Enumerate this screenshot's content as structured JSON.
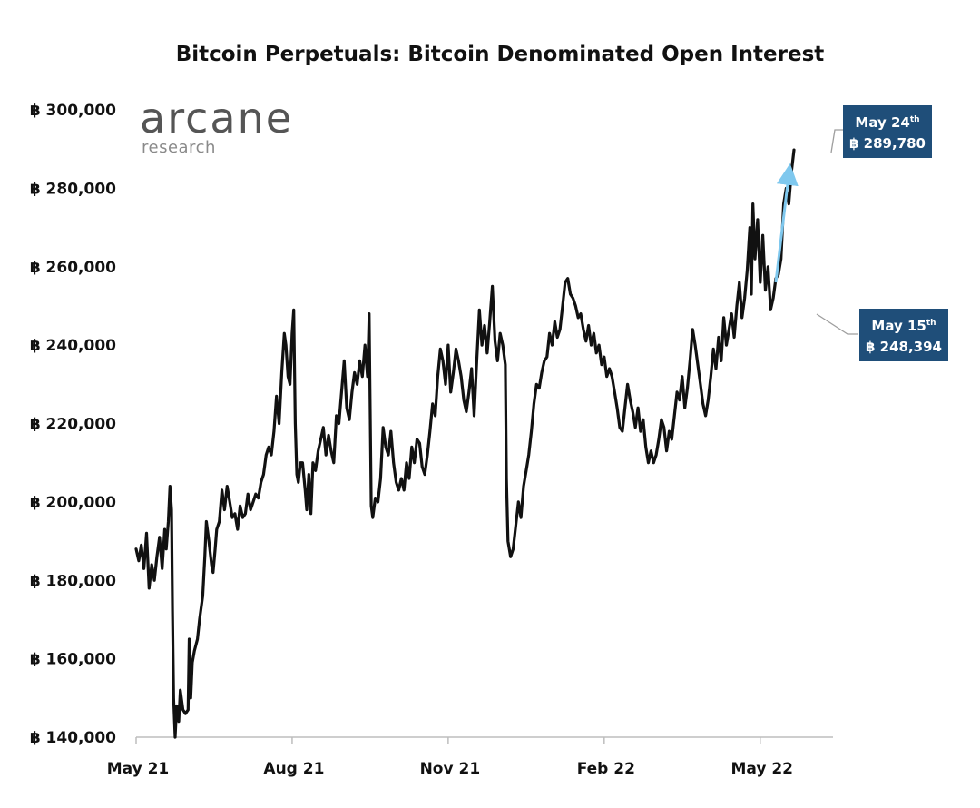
{
  "chart_data": {
    "type": "line",
    "title": "Bitcoin Perpetuals: Bitcoin Denominated Open Interest",
    "xlabel": "",
    "ylabel": "",
    "ylim": [
      140000,
      300000
    ],
    "y_ticks": [
      {
        "value": 300000,
        "label": "300,000"
      },
      {
        "value": 280000,
        "label": "280,000"
      },
      {
        "value": 260000,
        "label": "260,000"
      },
      {
        "value": 240000,
        "label": "240,000"
      },
      {
        "value": 220000,
        "label": "220,000"
      },
      {
        "value": 200000,
        "label": "200,000"
      },
      {
        "value": 180000,
        "label": "180,000"
      },
      {
        "value": 160000,
        "label": "160,000"
      },
      {
        "value": 140000,
        "label": "140,000"
      }
    ],
    "currency_symbol": "฿",
    "x_domain": [
      0,
      13.4
    ],
    "x_ticks": [
      {
        "value": 0,
        "label": "May 21"
      },
      {
        "value": 3,
        "label": "Aug 21"
      },
      {
        "value": 6,
        "label": "Nov 21"
      },
      {
        "value": 9,
        "label": "Feb 22"
      },
      {
        "value": 12,
        "label": "May 22"
      }
    ],
    "x_unit": "months since May 2021",
    "series": [
      {
        "name": "Bitcoin Denominated Open Interest",
        "color": "#111111",
        "points": [
          [
            0.0,
            188000
          ],
          [
            0.05,
            185000
          ],
          [
            0.1,
            189000
          ],
          [
            0.15,
            183000
          ],
          [
            0.2,
            192000
          ],
          [
            0.25,
            178000
          ],
          [
            0.3,
            184000
          ],
          [
            0.35,
            180000
          ],
          [
            0.4,
            186000
          ],
          [
            0.45,
            191000
          ],
          [
            0.5,
            183000
          ],
          [
            0.55,
            193000
          ],
          [
            0.58,
            188000
          ],
          [
            0.62,
            195000
          ],
          [
            0.65,
            204000
          ],
          [
            0.68,
            198000
          ],
          [
            0.7,
            172000
          ],
          [
            0.72,
            150000
          ],
          [
            0.75,
            140000
          ],
          [
            0.78,
            148000
          ],
          [
            0.82,
            144000
          ],
          [
            0.85,
            152000
          ],
          [
            0.9,
            147000
          ],
          [
            0.95,
            146000
          ],
          [
            1.0,
            147000
          ],
          [
            1.02,
            165000
          ],
          [
            1.05,
            150000
          ],
          [
            1.08,
            159000
          ],
          [
            1.12,
            162000
          ],
          [
            1.18,
            165000
          ],
          [
            1.22,
            170000
          ],
          [
            1.28,
            176000
          ],
          [
            1.32,
            186000
          ],
          [
            1.35,
            195000
          ],
          [
            1.4,
            190000
          ],
          [
            1.45,
            184000
          ],
          [
            1.48,
            182000
          ],
          [
            1.52,
            188000
          ],
          [
            1.55,
            193000
          ],
          [
            1.6,
            195000
          ],
          [
            1.65,
            203000
          ],
          [
            1.7,
            198000
          ],
          [
            1.75,
            204000
          ],
          [
            1.8,
            200000
          ],
          [
            1.85,
            196000
          ],
          [
            1.9,
            197000
          ],
          [
            1.95,
            193000
          ],
          [
            2.0,
            199000
          ],
          [
            2.05,
            196000
          ],
          [
            2.1,
            197000
          ],
          [
            2.15,
            202000
          ],
          [
            2.2,
            198000
          ],
          [
            2.25,
            200000
          ],
          [
            2.3,
            202000
          ],
          [
            2.35,
            201000
          ],
          [
            2.4,
            205000
          ],
          [
            2.45,
            207000
          ],
          [
            2.5,
            212000
          ],
          [
            2.55,
            214000
          ],
          [
            2.6,
            212000
          ],
          [
            2.65,
            218000
          ],
          [
            2.7,
            227000
          ],
          [
            2.75,
            220000
          ],
          [
            2.8,
            233000
          ],
          [
            2.85,
            243000
          ],
          [
            2.88,
            240000
          ],
          [
            2.92,
            232000
          ],
          [
            2.96,
            230000
          ],
          [
            3.0,
            243000
          ],
          [
            3.03,
            249000
          ],
          [
            3.06,
            220000
          ],
          [
            3.09,
            207000
          ],
          [
            3.12,
            205000
          ],
          [
            3.16,
            210000
          ],
          [
            3.2,
            210000
          ],
          [
            3.25,
            203000
          ],
          [
            3.28,
            198000
          ],
          [
            3.32,
            207000
          ],
          [
            3.36,
            197000
          ],
          [
            3.4,
            210000
          ],
          [
            3.45,
            208000
          ],
          [
            3.5,
            213000
          ],
          [
            3.55,
            216000
          ],
          [
            3.6,
            219000
          ],
          [
            3.65,
            212000
          ],
          [
            3.7,
            217000
          ],
          [
            3.75,
            213000
          ],
          [
            3.8,
            210000
          ],
          [
            3.85,
            222000
          ],
          [
            3.9,
            220000
          ],
          [
            3.95,
            228000
          ],
          [
            4.0,
            236000
          ],
          [
            4.05,
            224000
          ],
          [
            4.1,
            221000
          ],
          [
            4.15,
            228000
          ],
          [
            4.2,
            233000
          ],
          [
            4.25,
            230000
          ],
          [
            4.3,
            236000
          ],
          [
            4.35,
            232000
          ],
          [
            4.4,
            240000
          ],
          [
            4.45,
            232000
          ],
          [
            4.48,
            248000
          ],
          [
            4.52,
            199000
          ],
          [
            4.55,
            196000
          ],
          [
            4.6,
            201000
          ],
          [
            4.65,
            200000
          ],
          [
            4.7,
            206000
          ],
          [
            4.75,
            219000
          ],
          [
            4.8,
            214000
          ],
          [
            4.85,
            212000
          ],
          [
            4.9,
            218000
          ],
          [
            4.95,
            210000
          ],
          [
            5.0,
            205000
          ],
          [
            5.05,
            203000
          ],
          [
            5.1,
            206000
          ],
          [
            5.15,
            203000
          ],
          [
            5.2,
            210000
          ],
          [
            5.25,
            206000
          ],
          [
            5.3,
            214000
          ],
          [
            5.35,
            210000
          ],
          [
            5.4,
            216000
          ],
          [
            5.45,
            215000
          ],
          [
            5.5,
            209000
          ],
          [
            5.55,
            207000
          ],
          [
            5.6,
            212000
          ],
          [
            5.65,
            218000
          ],
          [
            5.7,
            225000
          ],
          [
            5.75,
            222000
          ],
          [
            5.8,
            232000
          ],
          [
            5.85,
            239000
          ],
          [
            5.9,
            236000
          ],
          [
            5.95,
            230000
          ],
          [
            6.0,
            240000
          ],
          [
            6.05,
            228000
          ],
          [
            6.1,
            233000
          ],
          [
            6.15,
            239000
          ],
          [
            6.2,
            236000
          ],
          [
            6.25,
            232000
          ],
          [
            6.3,
            226000
          ],
          [
            6.35,
            223000
          ],
          [
            6.4,
            228000
          ],
          [
            6.45,
            234000
          ],
          [
            6.5,
            222000
          ],
          [
            6.55,
            236000
          ],
          [
            6.6,
            249000
          ],
          [
            6.65,
            240000
          ],
          [
            6.7,
            245000
          ],
          [
            6.75,
            238000
          ],
          [
            6.8,
            246000
          ],
          [
            6.85,
            255000
          ],
          [
            6.9,
            241000
          ],
          [
            6.95,
            236000
          ],
          [
            7.0,
            243000
          ],
          [
            7.05,
            240000
          ],
          [
            7.1,
            235000
          ],
          [
            7.12,
            206000
          ],
          [
            7.15,
            190000
          ],
          [
            7.2,
            186000
          ],
          [
            7.25,
            188000
          ],
          [
            7.3,
            194000
          ],
          [
            7.35,
            200000
          ],
          [
            7.4,
            196000
          ],
          [
            7.45,
            204000
          ],
          [
            7.5,
            208000
          ],
          [
            7.55,
            212000
          ],
          [
            7.6,
            218000
          ],
          [
            7.65,
            225000
          ],
          [
            7.7,
            230000
          ],
          [
            7.75,
            229000
          ],
          [
            7.8,
            233000
          ],
          [
            7.85,
            236000
          ],
          [
            7.9,
            237000
          ],
          [
            7.95,
            243000
          ],
          [
            8.0,
            240000
          ],
          [
            8.05,
            246000
          ],
          [
            8.1,
            242000
          ],
          [
            8.15,
            244000
          ],
          [
            8.2,
            250000
          ],
          [
            8.25,
            256000
          ],
          [
            8.3,
            257000
          ],
          [
            8.35,
            253000
          ],
          [
            8.4,
            252000
          ],
          [
            8.45,
            250000
          ],
          [
            8.5,
            247000
          ],
          [
            8.55,
            248000
          ],
          [
            8.6,
            244000
          ],
          [
            8.65,
            241000
          ],
          [
            8.7,
            245000
          ],
          [
            8.75,
            240000
          ],
          [
            8.8,
            243000
          ],
          [
            8.85,
            238000
          ],
          [
            8.9,
            240000
          ],
          [
            8.95,
            235000
          ],
          [
            9.0,
            237000
          ],
          [
            9.05,
            232000
          ],
          [
            9.1,
            234000
          ],
          [
            9.15,
            232000
          ],
          [
            9.2,
            228000
          ],
          [
            9.25,
            224000
          ],
          [
            9.3,
            219000
          ],
          [
            9.35,
            218000
          ],
          [
            9.4,
            224000
          ],
          [
            9.45,
            230000
          ],
          [
            9.5,
            226000
          ],
          [
            9.55,
            223000
          ],
          [
            9.6,
            219000
          ],
          [
            9.65,
            224000
          ],
          [
            9.7,
            218000
          ],
          [
            9.75,
            221000
          ],
          [
            9.8,
            214000
          ],
          [
            9.85,
            210000
          ],
          [
            9.9,
            213000
          ],
          [
            9.95,
            210000
          ],
          [
            10.0,
            212000
          ],
          [
            10.05,
            216000
          ],
          [
            10.1,
            221000
          ],
          [
            10.15,
            219000
          ],
          [
            10.2,
            213000
          ],
          [
            10.25,
            218000
          ],
          [
            10.3,
            216000
          ],
          [
            10.35,
            222000
          ],
          [
            10.4,
            228000
          ],
          [
            10.45,
            226000
          ],
          [
            10.5,
            232000
          ],
          [
            10.55,
            224000
          ],
          [
            10.6,
            229000
          ],
          [
            10.65,
            236000
          ],
          [
            10.7,
            244000
          ],
          [
            10.75,
            240000
          ],
          [
            10.8,
            235000
          ],
          [
            10.85,
            230000
          ],
          [
            10.9,
            225000
          ],
          [
            10.95,
            222000
          ],
          [
            11.0,
            226000
          ],
          [
            11.05,
            232000
          ],
          [
            11.1,
            239000
          ],
          [
            11.15,
            234000
          ],
          [
            11.2,
            242000
          ],
          [
            11.25,
            236000
          ],
          [
            11.3,
            247000
          ],
          [
            11.35,
            240000
          ],
          [
            11.4,
            244000
          ],
          [
            11.45,
            248000
          ],
          [
            11.5,
            242000
          ],
          [
            11.55,
            250000
          ],
          [
            11.6,
            256000
          ],
          [
            11.65,
            247000
          ],
          [
            11.7,
            252000
          ],
          [
            11.75,
            259000
          ],
          [
            11.8,
            270000
          ],
          [
            11.83,
            253000
          ],
          [
            11.86,
            276000
          ],
          [
            11.9,
            262000
          ],
          [
            11.95,
            272000
          ],
          [
            12.0,
            256000
          ],
          [
            12.05,
            268000
          ],
          [
            12.1,
            254000
          ],
          [
            12.15,
            260000
          ],
          [
            12.2,
            249000
          ],
          [
            12.25,
            252000
          ],
          [
            12.3,
            257000
          ],
          [
            12.35,
            258000
          ],
          [
            12.4,
            262000
          ],
          [
            12.45,
            276000
          ],
          [
            12.5,
            280000
          ],
          [
            12.55,
            276000
          ],
          [
            12.6,
            284000
          ],
          [
            12.65,
            289780
          ]
        ]
      }
    ],
    "annotations": [
      {
        "date_label": "May 24",
        "suffix": "th",
        "value_label": "289,780",
        "value": 289780,
        "at_x": 12.65
      },
      {
        "date_label": "May 15",
        "suffix": "th",
        "value_label": "248,394",
        "value": 248394,
        "at_x": 12.2
      }
    ],
    "trend_arrow": {
      "color": "#7fc8ee",
      "from": [
        12.3,
        256000
      ],
      "to": [
        12.55,
        285000
      ]
    },
    "annotation_box_color": "#1f4e79",
    "grid": false,
    "legend": "none"
  },
  "logo": {
    "main": "arcane",
    "sub": "research"
  }
}
